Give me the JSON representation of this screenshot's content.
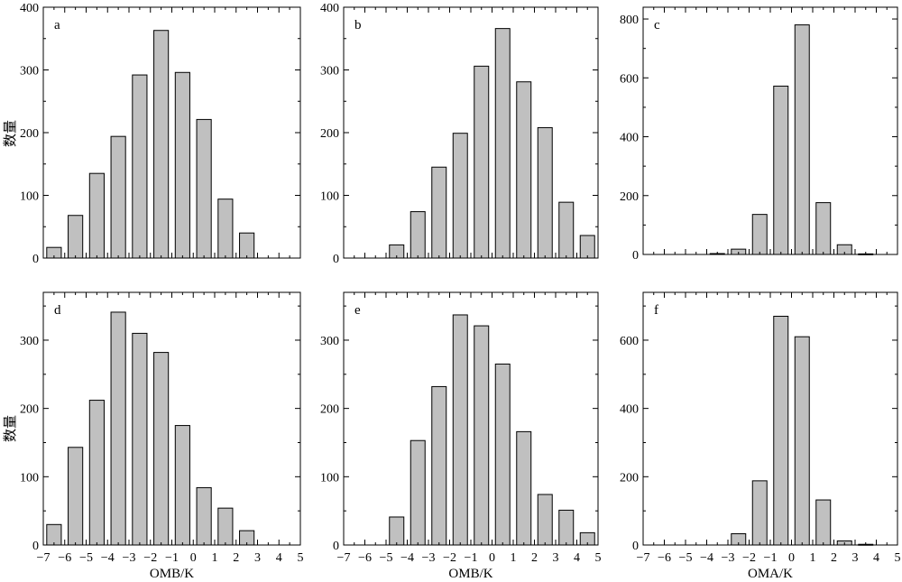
{
  "figure": {
    "ylabel": "数量"
  },
  "chart_data": [
    {
      "type": "bar",
      "panel": "a",
      "xlabel": "",
      "ylabel": "数量",
      "xlim": [
        -7,
        5
      ],
      "ylim": [
        0,
        400
      ],
      "yticks": [
        0,
        100,
        200,
        300,
        400
      ],
      "xticks": [],
      "x": [
        -6.5,
        -5.5,
        -4.5,
        -3.5,
        -2.5,
        -1.5,
        -0.5,
        0.5,
        1.5,
        2.5,
        3.5,
        4.5
      ],
      "values": [
        17,
        68,
        135,
        194,
        292,
        363,
        296,
        221,
        94,
        40,
        0,
        0
      ]
    },
    {
      "type": "bar",
      "panel": "b",
      "xlabel": "",
      "ylabel": "",
      "xlim": [
        -7,
        5
      ],
      "ylim": [
        0,
        400
      ],
      "yticks": [
        0,
        100,
        200,
        300,
        400
      ],
      "xticks": [],
      "x": [
        -6.5,
        -5.5,
        -4.5,
        -3.5,
        -2.5,
        -1.5,
        -0.5,
        0.5,
        1.5,
        2.5,
        3.5,
        4.5
      ],
      "values": [
        0,
        0,
        21,
        74,
        145,
        199,
        306,
        366,
        281,
        208,
        89,
        36
      ]
    },
    {
      "type": "bar",
      "panel": "c",
      "xlabel": "",
      "ylabel": "",
      "xlim": [
        -7,
        5
      ],
      "ylim": [
        0,
        840
      ],
      "yticks": [
        0,
        200,
        400,
        600,
        800
      ],
      "xticks": [],
      "x": [
        -6.5,
        -5.5,
        -4.5,
        -3.5,
        -2.5,
        -1.5,
        -0.5,
        0.5,
        1.5,
        2.5,
        3.5,
        4.5
      ],
      "values": [
        0,
        0,
        0,
        3,
        18,
        136,
        572,
        780,
        176,
        33,
        2,
        0
      ]
    },
    {
      "type": "bar",
      "panel": "d",
      "xlabel": "OMB/K",
      "ylabel": "数量",
      "xlim": [
        -7,
        5
      ],
      "ylim": [
        0,
        370
      ],
      "yticks": [
        0,
        100,
        200,
        300
      ],
      "xticks": [
        "−7",
        "−6",
        "−5",
        "−4",
        "−3",
        "−2",
        "−1",
        "0",
        "1",
        "2",
        "3",
        "4",
        "5"
      ],
      "x": [
        -6.5,
        -5.5,
        -4.5,
        -3.5,
        -2.5,
        -1.5,
        -0.5,
        0.5,
        1.5,
        2.5,
        3.5,
        4.5
      ],
      "values": [
        30,
        143,
        212,
        341,
        310,
        282,
        175,
        84,
        54,
        21,
        0,
        0
      ]
    },
    {
      "type": "bar",
      "panel": "e",
      "xlabel": "OMB/K",
      "ylabel": "",
      "xlim": [
        -7,
        5
      ],
      "ylim": [
        0,
        370
      ],
      "yticks": [
        0,
        100,
        200,
        300
      ],
      "xticks": [
        "−7",
        "−6",
        "−5",
        "−4",
        "−3",
        "−2",
        "−1",
        "0",
        "1",
        "2",
        "3",
        "4",
        "5"
      ],
      "x": [
        -6.5,
        -5.5,
        -4.5,
        -3.5,
        -2.5,
        -1.5,
        -0.5,
        0.5,
        1.5,
        2.5,
        3.5,
        4.5
      ],
      "values": [
        0,
        0,
        41,
        153,
        232,
        337,
        321,
        265,
        166,
        74,
        51,
        18
      ]
    },
    {
      "type": "bar",
      "panel": "f",
      "xlabel": "OMA/K",
      "ylabel": "",
      "xlim": [
        -7,
        5
      ],
      "ylim": [
        0,
        740
      ],
      "yticks": [
        0,
        200,
        400,
        600
      ],
      "xticks": [
        "−7",
        "−6",
        "−5",
        "−4",
        "−3",
        "−2",
        "−1",
        "0",
        "1",
        "2",
        "3",
        "4",
        "5"
      ],
      "x": [
        -6.5,
        -5.5,
        -4.5,
        -3.5,
        -2.5,
        -1.5,
        -0.5,
        0.5,
        1.5,
        2.5,
        3.5,
        4.5
      ],
      "values": [
        0,
        0,
        0,
        0,
        33,
        188,
        670,
        610,
        132,
        12,
        2,
        0
      ]
    }
  ]
}
